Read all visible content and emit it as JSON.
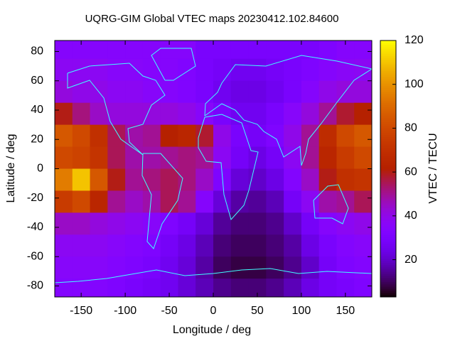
{
  "chart_data": {
    "type": "heatmap",
    "title": "UQRG-GIM Global VTEC maps 20230412.102.84600",
    "x_label": "Longitude / deg",
    "y_label": "Latitude / deg",
    "colorbar_label": "VTEC / TECU",
    "x": [
      -170,
      -150,
      -130,
      -110,
      -90,
      -70,
      -50,
      -30,
      -10,
      10,
      30,
      50,
      70,
      90,
      110,
      130,
      150,
      170
    ],
    "y": [
      82.5,
      67.5,
      52.5,
      37.5,
      22.5,
      7.5,
      -7.5,
      -22.5,
      -37.5,
      -52.5,
      -67.5,
      -82.5
    ],
    "z": [
      [
        35,
        35,
        35,
        35,
        35,
        35,
        35,
        35,
        30,
        30,
        30,
        30,
        30,
        30,
        30,
        32,
        35,
        35
      ],
      [
        38,
        38,
        38,
        36,
        36,
        35,
        35,
        33,
        30,
        28,
        26,
        26,
        28,
        30,
        32,
        35,
        37,
        38
      ],
      [
        42,
        40,
        40,
        38,
        38,
        36,
        35,
        33,
        30,
        26,
        24,
        24,
        26,
        30,
        35,
        40,
        42,
        42
      ],
      [
        60,
        52,
        45,
        42,
        42,
        42,
        42,
        40,
        36,
        30,
        26,
        26,
        30,
        36,
        42,
        50,
        58,
        62
      ],
      [
        85,
        80,
        70,
        55,
        48,
        50,
        62,
        65,
        58,
        40,
        30,
        28,
        32,
        40,
        50,
        68,
        80,
        85
      ],
      [
        80,
        78,
        72,
        55,
        48,
        48,
        50,
        52,
        50,
        38,
        28,
        24,
        28,
        38,
        50,
        65,
        75,
        80
      ],
      [
        95,
        110,
        85,
        60,
        50,
        52,
        55,
        52,
        45,
        32,
        22,
        20,
        24,
        34,
        45,
        60,
        70,
        72
      ],
      [
        75,
        80,
        65,
        50,
        45,
        48,
        55,
        50,
        35,
        22,
        16,
        15,
        18,
        28,
        38,
        48,
        50,
        55
      ],
      [
        45,
        45,
        42,
        40,
        38,
        36,
        32,
        28,
        22,
        15,
        12,
        12,
        14,
        20,
        28,
        35,
        38,
        40
      ],
      [
        38,
        38,
        38,
        36,
        34,
        32,
        28,
        24,
        18,
        12,
        10,
        10,
        12,
        16,
        24,
        30,
        34,
        36
      ],
      [
        36,
        36,
        36,
        34,
        32,
        30,
        26,
        22,
        16,
        10,
        8,
        8,
        10,
        14,
        20,
        28,
        32,
        34
      ],
      [
        34,
        34,
        34,
        32,
        30,
        28,
        26,
        22,
        18,
        14,
        12,
        12,
        14,
        18,
        24,
        28,
        30,
        32
      ]
    ],
    "xlim": [
      -180,
      180
    ],
    "ylim": [
      -87.5,
      87.5
    ],
    "zlim": [
      3,
      120
    ],
    "xticks": [
      -150,
      -100,
      -50,
      0,
      50,
      100,
      150
    ],
    "yticks": [
      -80,
      -60,
      -40,
      -20,
      0,
      20,
      40,
      60,
      80
    ],
    "zticks": [
      20,
      40,
      60,
      80,
      100,
      120
    ],
    "palette": "gnuplot",
    "coastline_color": "#40ffff"
  }
}
